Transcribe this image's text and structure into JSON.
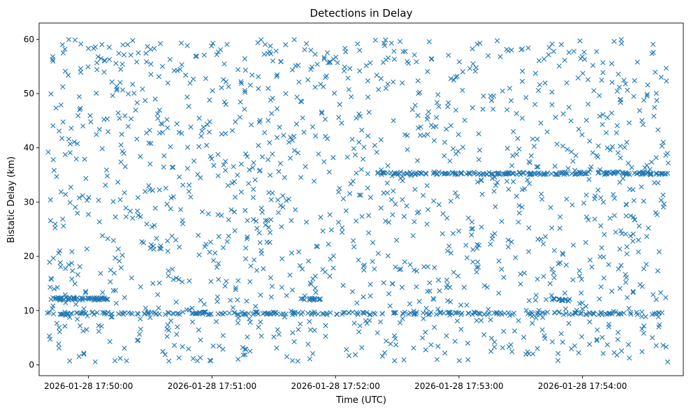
{
  "chart_data": {
    "type": "scatter",
    "title": "Detections in Delay",
    "xlabel": "Time (UTC)",
    "ylabel": "Bistatic Delay (km)",
    "x_start": "2026-01-28 17:49:40",
    "x_end": "2026-01-28 17:54:42",
    "xlim": [
      "2026-01-28 17:49:36",
      "2026-01-28 17:54:49"
    ],
    "ylim": [
      -2,
      63
    ],
    "x_ticks": [
      "2026-01-28 17:50:00",
      "2026-01-28 17:51:00",
      "2026-01-28 17:52:00",
      "2026-01-28 17:53:00",
      "2026-01-28 17:54:00"
    ],
    "y_ticks": [
      0,
      10,
      20,
      30,
      40,
      50,
      60
    ],
    "marker": "x",
    "color": "#1f77b4",
    "grid": false,
    "series": [
      {
        "x_range": [
          "2026-01-28 17:49:40",
          "2026-01-28 17:54:42"
        ],
        "y_range": [
          0.5,
          60
        ],
        "count": 1400,
        "distribution": "uniform"
      },
      {
        "x_range": [
          "2026-01-28 17:49:40",
          "2026-01-28 17:54:42"
        ],
        "y": 9.5,
        "count": 260
      },
      {
        "x_range": [
          "2026-01-28 17:52:20",
          "2026-01-28 17:54:42"
        ],
        "y": 35.3,
        "count": 200
      },
      {
        "x_range": [
          "2026-01-28 17:49:40",
          "2026-01-28 17:50:10"
        ],
        "y": 12.2,
        "count": 60
      },
      {
        "x_range": [
          "2026-01-28 17:51:44",
          "2026-01-28 17:51:53"
        ],
        "y": 12.1,
        "count": 15
      },
      {
        "x_range": [
          "2026-01-28 17:53:43",
          "2026-01-28 17:53:56"
        ],
        "y": 12.0,
        "count": 18
      }
    ]
  }
}
